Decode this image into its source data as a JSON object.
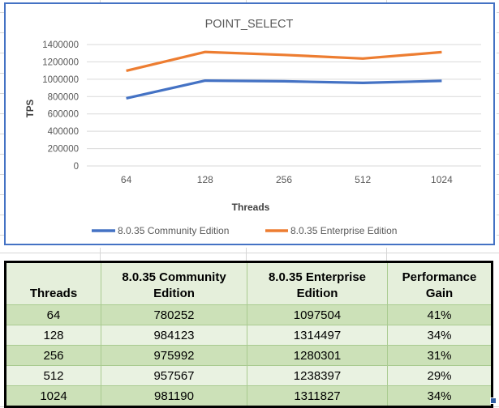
{
  "chart_data": {
    "type": "line",
    "title": "POINT_SELECT",
    "xlabel": "Threads",
    "ylabel": "TPS",
    "categories": [
      "64",
      "128",
      "256",
      "512",
      "1024"
    ],
    "series": [
      {
        "name": "8.0.35 Community Edition",
        "color": "#4472C4",
        "values": [
          780252,
          984123,
          975992,
          957567,
          981190
        ]
      },
      {
        "name": "8.0.35 Enterprise Edition",
        "color": "#ED7D31",
        "values": [
          1097504,
          1314497,
          1280301,
          1238397,
          1311827
        ]
      }
    ],
    "ylim": [
      0,
      1400000
    ],
    "ytick_step": 200000,
    "grid": true,
    "legend_position": "bottom",
    "gridline_color": "#D9D9D9",
    "axis_text_color": "#595959",
    "axis_title_color": "#404040",
    "chart_border_color": "#4472C4"
  },
  "table": {
    "columns": [
      "Threads",
      "8.0.35 Community Edition",
      "8.0.35 Enterprise Edition",
      "Performance Gain"
    ],
    "rows": [
      [
        "64",
        "780252",
        "1097504",
        "41%"
      ],
      [
        "128",
        "984123",
        "1314497",
        "34%"
      ],
      [
        "256",
        "975992",
        "1280301",
        "31%"
      ],
      [
        "512",
        "957567",
        "1238397",
        "29%"
      ],
      [
        "1024",
        "981190",
        "1311827",
        "34%"
      ]
    ],
    "colors": {
      "header_bg": "#E5EFDB",
      "row_dark_bg": "#CCE1B8",
      "row_light_bg": "#E9F2E1",
      "inner_border": "#A9CB90",
      "outer_border": "#000000"
    }
  }
}
